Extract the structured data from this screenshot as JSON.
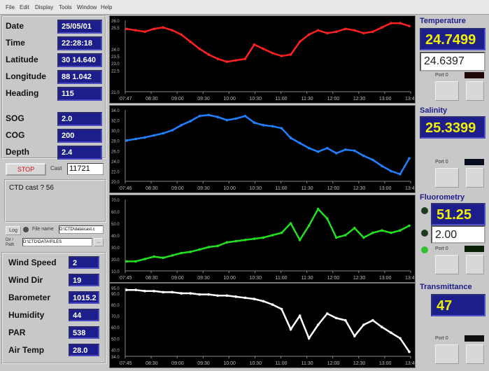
{
  "menu": [
    "File",
    "Edit",
    "Display",
    "Tools",
    "Window",
    "Help"
  ],
  "left": {
    "fields": [
      {
        "label": "Date",
        "value": "25/05/01"
      },
      {
        "label": "Time",
        "value": "22:28:18"
      },
      {
        "label": "Latitude",
        "value": "30 14.640"
      },
      {
        "label": "Longitude",
        "value": "88 1.042"
      },
      {
        "label": "Heading",
        "value": "115"
      },
      {
        "label": "SOG",
        "value": "2.0"
      },
      {
        "label": "COG",
        "value": "200"
      },
      {
        "label": "Depth",
        "value": "2.4"
      }
    ],
    "stop_label": "STOP",
    "cast_label": "Cast",
    "cast_value": "11721",
    "status_text": "CTD cast ? 56",
    "log_button": "Log",
    "file_label": "File name",
    "file_value": "D:\\CTD\\data\\cast.c",
    "dir_label": "Dir / Path",
    "dir_value": "D:\\CTD\\DATA\\FILES",
    "dir_button": "...",
    "met": [
      {
        "label": "Wind Speed",
        "value": "2"
      },
      {
        "label": "Wind Dir",
        "value": "19"
      },
      {
        "label": "Barometer",
        "value": "1015.2"
      },
      {
        "label": "Humidity",
        "value": "44"
      },
      {
        "label": "PAR",
        "value": "538"
      },
      {
        "label": "Air Temp",
        "value": "28.0"
      }
    ]
  },
  "right": {
    "temperature": {
      "title": "Temperature",
      "value": "24.7499",
      "value2": "24.6397",
      "port": "Port 0"
    },
    "salinity": {
      "title": "Salinity",
      "value": "25.3399",
      "port": "Port 0"
    },
    "fluorometry": {
      "title": "Fluorometry",
      "value": "51.25",
      "value2": "2.00",
      "port": "Port 0"
    },
    "transmittance": {
      "title": "Transmittance",
      "value": "47",
      "port": "Port 0"
    }
  },
  "colors": {
    "temperature": "#ff2020",
    "salinity": "#2080ff",
    "fluorometry": "#20e020",
    "transmittance": "#ffffff"
  },
  "chart_data": [
    {
      "type": "line",
      "series_color": "#ff2020",
      "yticks": [
        "26.0",
        "25.5",
        "24.0",
        "23.5",
        "23.0",
        "22.5",
        "21.0"
      ],
      "xticks": [
        "07:47",
        "08:30",
        "09:00",
        "09:30",
        "10:00",
        "10:30",
        "11:00",
        "11:30",
        "12:00",
        "12:30",
        "13:00",
        "13:4"
      ],
      "values": [
        25.4,
        25.3,
        25.2,
        25.4,
        25.5,
        25.3,
        25.0,
        24.5,
        24.0,
        23.6,
        23.3,
        23.1,
        23.2,
        23.3,
        24.3,
        24.0,
        23.7,
        23.5,
        23.6,
        24.5,
        25.0,
        25.3,
        25.1,
        25.2,
        25.4,
        25.3,
        25.1,
        25.2,
        25.5,
        25.8,
        25.8,
        25.6
      ]
    },
    {
      "type": "line",
      "series_color": "#2080ff",
      "yticks": [
        "34.0",
        "32.0",
        "30.0",
        "28.0",
        "26.0",
        "24.0",
        "22.0",
        "20.0"
      ],
      "xticks": [
        "07:46",
        "08:30",
        "09:00",
        "09:30",
        "10:00",
        "10:30",
        "11:00",
        "11:30",
        "12:00",
        "12:30",
        "13:00",
        "13:4"
      ],
      "values": [
        28.0,
        28.3,
        28.6,
        29.0,
        29.4,
        30.0,
        31.0,
        31.8,
        32.8,
        33.0,
        32.6,
        32.0,
        32.3,
        32.8,
        31.5,
        31.0,
        30.8,
        30.4,
        28.5,
        27.5,
        26.5,
        25.8,
        26.5,
        25.5,
        26.2,
        26.0,
        25.0,
        24.2,
        23.0,
        22.0,
        21.4,
        24.5
      ]
    },
    {
      "type": "line",
      "series_color": "#20e020",
      "yticks": [
        "70.0",
        "60.0",
        "50.0",
        "40.0",
        "30.0",
        "20.0",
        "10.0"
      ],
      "xticks": [
        "07:45",
        "08:30",
        "09:00",
        "09:30",
        "10:00",
        "10:30",
        "11:00",
        "11:30",
        "12:00",
        "12:30",
        "13:00",
        "13:4"
      ],
      "values": [
        18,
        18,
        20,
        22,
        21,
        23,
        25,
        26,
        28,
        30,
        31,
        34,
        35,
        36,
        37,
        38,
        40,
        42,
        50,
        36,
        48,
        62,
        54,
        38,
        40,
        46,
        38,
        42,
        44,
        42,
        44,
        48
      ]
    },
    {
      "type": "line",
      "series_color": "#ffffff",
      "yticks": [
        "95.0",
        "90.0",
        "80.0",
        "70.0",
        "60.0",
        "50.0",
        "40.0",
        "34.0"
      ],
      "xticks": [
        "07:45",
        "08:30",
        "09:00",
        "09:30",
        "10:00",
        "10:30",
        "11:00",
        "11:30",
        "12:00",
        "12:30",
        "13:00",
        "13:4"
      ],
      "values": [
        93,
        93,
        92,
        92,
        91,
        91,
        90,
        90,
        89,
        89,
        88,
        88,
        87,
        86,
        85,
        83,
        80,
        76,
        58,
        70,
        50,
        62,
        72,
        68,
        66,
        52,
        62,
        66,
        60,
        55,
        50,
        38
      ]
    }
  ]
}
